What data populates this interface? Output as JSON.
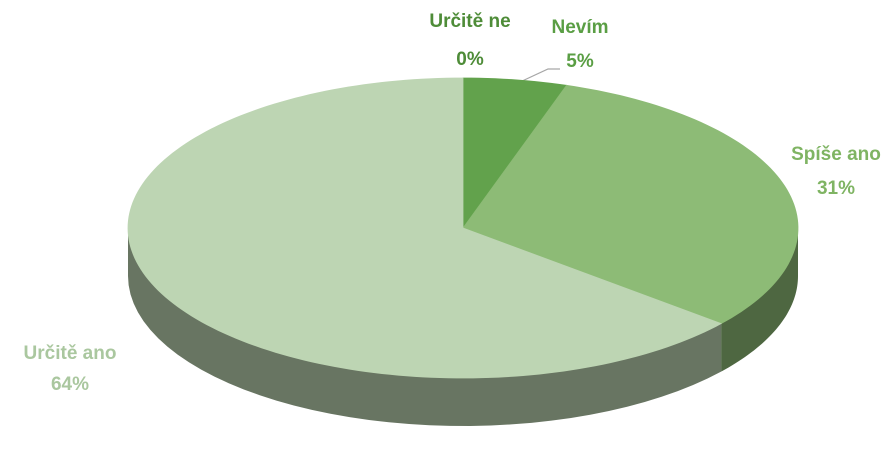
{
  "chart_data": {
    "type": "pie",
    "categories": [
      "Určitě ne",
      "Nevím",
      "Spíše ano",
      "Určitě ano"
    ],
    "values": [
      0,
      5,
      31,
      64
    ],
    "value_labels": [
      "0%",
      "5%",
      "31%",
      "64%"
    ],
    "colors": [
      "#3f7d2e",
      "#62a24c",
      "#8dbb76",
      "#bdd5b3"
    ],
    "label_colors": [
      "#4e8c38",
      "#5a9e44",
      "#7fb463",
      "#aac79f"
    ]
  }
}
